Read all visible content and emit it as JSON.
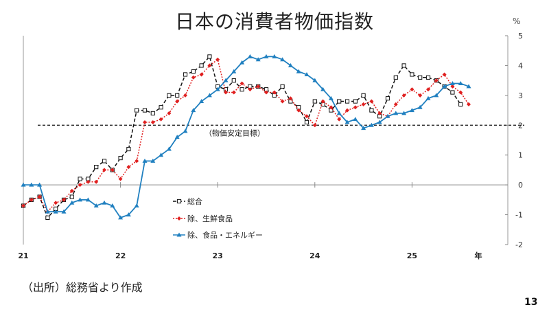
{
  "title": "日本の消費者物価指数",
  "unit": "%",
  "source": "（出所）総務省より作成",
  "page_number": "13",
  "chart_data": {
    "type": "line",
    "title": "日本の消費者物価指数",
    "ylabel": "%",
    "xlabel": "年",
    "ylim": [
      -2,
      5
    ],
    "yticks": [
      -2,
      -1,
      0,
      1,
      2,
      3,
      4,
      5
    ],
    "x_tick_labels": [
      "21",
      "22",
      "23",
      "24",
      "25"
    ],
    "x_axis_unit_label": "年",
    "x_start": "2021-01",
    "months": 58,
    "reference_line": {
      "value": 2,
      "label": "（物価安定目標）",
      "style": "dashed"
    },
    "legend_position": "left-bottom",
    "series": [
      {
        "name": "総合",
        "color": "#111111",
        "style": "dashed",
        "marker": "square-open",
        "values": [
          -0.7,
          -0.5,
          -0.4,
          -1.1,
          -0.8,
          -0.5,
          -0.4,
          0.2,
          0.2,
          0.6,
          0.8,
          0.5,
          0.9,
          1.2,
          2.5,
          2.5,
          2.4,
          2.6,
          3.0,
          3.0,
          3.7,
          3.8,
          4.0,
          4.3,
          3.3,
          3.2,
          3.5,
          3.2,
          3.3,
          3.3,
          3.2,
          3.0,
          3.3,
          2.8,
          2.6,
          2.1,
          2.8,
          2.7,
          2.5,
          2.8,
          2.8,
          2.8,
          3.0,
          2.5,
          2.3,
          2.9,
          3.6,
          4.0,
          3.7,
          3.6,
          3.6,
          3.5,
          3.3,
          3.1,
          2.7
        ]
      },
      {
        "name": "除、生鮮食品",
        "color": "#e02020",
        "style": "dotted",
        "marker": "diamond",
        "values": [
          -0.7,
          -0.5,
          -0.4,
          -0.9,
          -0.6,
          -0.5,
          -0.2,
          0.0,
          0.1,
          0.1,
          0.5,
          0.5,
          0.2,
          0.6,
          0.8,
          2.1,
          2.1,
          2.2,
          2.4,
          2.8,
          3.0,
          3.6,
          3.7,
          4.0,
          4.2,
          3.1,
          3.1,
          3.4,
          3.2,
          3.3,
          3.1,
          3.1,
          2.8,
          2.9,
          2.5,
          2.3,
          2.0,
          2.8,
          2.6,
          2.2,
          2.5,
          2.6,
          2.7,
          2.8,
          2.4,
          2.3,
          2.7,
          3.0,
          3.2,
          3.0,
          3.2,
          3.5,
          3.7,
          3.3,
          3.1,
          2.7
        ]
      },
      {
        "name": "除、食品・エネルギー",
        "color": "#2080c0",
        "style": "solid",
        "marker": "triangle",
        "values": [
          0.0,
          0.0,
          0.0,
          -0.9,
          -0.9,
          -0.9,
          -0.6,
          -0.5,
          -0.5,
          -0.7,
          -0.6,
          -0.7,
          -1.1,
          -1.0,
          -0.7,
          0.8,
          0.8,
          1.0,
          1.2,
          1.6,
          1.8,
          2.5,
          2.8,
          3.0,
          3.2,
          3.5,
          3.8,
          4.1,
          4.3,
          4.2,
          4.3,
          4.3,
          4.2,
          4.0,
          3.8,
          3.7,
          3.5,
          3.2,
          2.9,
          2.4,
          2.1,
          2.2,
          1.9,
          2.0,
          2.1,
          2.3,
          2.4,
          2.4,
          2.5,
          2.6,
          2.9,
          3.0,
          3.3,
          3.4,
          3.4,
          3.3
        ]
      }
    ]
  }
}
